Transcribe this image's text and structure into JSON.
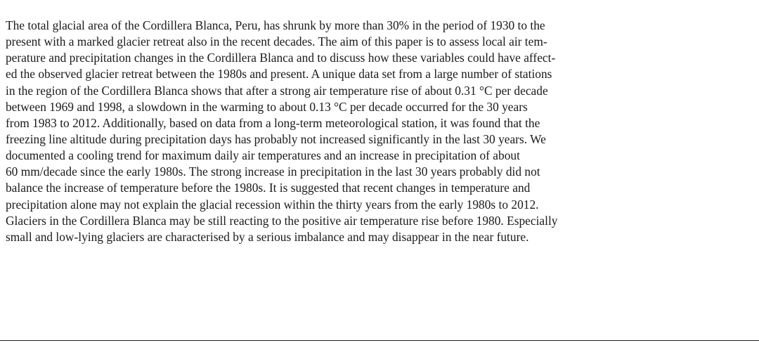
{
  "abstract": {
    "lines": [
      "The total glacial area of the Cordillera Blanca, Peru, has shrunk by more than 30% in the period of 1930 to the",
      "present with a marked glacier retreat also in the recent decades. The aim of this paper is to assess local air tem-",
      "perature and precipitation changes in the Cordillera Blanca and to discuss how these variables could have affect-",
      "ed the observed glacier retreat between the 1980s and present. A unique data set from a large number of stations",
      "in the region of the Cordillera Blanca shows that after a strong air temperature rise of about 0.31 °C per decade",
      "between 1969 and 1998, a slowdown in the warming to about 0.13 °C per decade occurred for the 30 years",
      "from 1983 to 2012. Additionally, based on data from a long-term meteorological station, it was found that the",
      "freezing line altitude during precipitation days has probably not increased significantly in the last 30 years. We",
      "documented a cooling trend for maximum daily air temperatures and an increase in precipitation of about",
      "60 mm/decade since the early 1980s. The strong increase in precipitation in the last 30 years probably did not",
      "balance the increase of temperature before the 1980s. It is suggested that recent changes in temperature and",
      "precipitation alone may not explain the glacial recession within the thirty years from the early 1980s to 2012.",
      "Glaciers in the Cordillera Blanca may be still reacting to the positive air temperature rise before 1980. Especially",
      "small and low-lying glaciers are characterised by a serious imbalance and may disappear in the near future."
    ]
  },
  "colors": {
    "text": "#1a1a1a",
    "background": "#ffffff",
    "rule": "#222222"
  }
}
